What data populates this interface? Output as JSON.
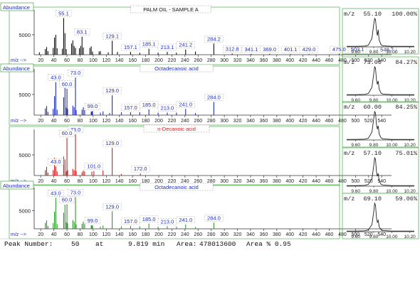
{
  "colors": {
    "frame": "#5cb85c",
    "spectrum1": "#111111",
    "spectrum2": "#1f2dbf",
    "spectrum3": "#cc2222",
    "spectrum4": "#2e9b2e",
    "label": "#1f2dbf",
    "annot3": "#cc2222"
  },
  "chart_data": [
    {
      "type": "bar",
      "panel": "spectrum-1",
      "title": "PALM OIL - SAMPLE A",
      "ylabel": "Abundance",
      "xlabel": "m/z -->",
      "yticks": [
        5000
      ],
      "ylim": [
        0,
        10500
      ],
      "xlim": [
        10,
        555
      ],
      "xticks": [
        20,
        40,
        60,
        80,
        100,
        120,
        140,
        160,
        180,
        200,
        220,
        240,
        260,
        280,
        300,
        320,
        340,
        360,
        380,
        400,
        420,
        440,
        460,
        480,
        500,
        520,
        540
      ],
      "peaks": [
        [
          18,
          600
        ],
        [
          27,
          1400
        ],
        [
          29,
          1900
        ],
        [
          31,
          900
        ],
        [
          39,
          1700
        ],
        [
          41,
          4300
        ],
        [
          43,
          5000
        ],
        [
          45,
          1600
        ],
        [
          53,
          1500
        ],
        [
          55,
          9200
        ],
        [
          57,
          5400
        ],
        [
          59,
          1400
        ],
        [
          67,
          2800
        ],
        [
          69,
          3600
        ],
        [
          71,
          2200
        ],
        [
          73,
          1700
        ],
        [
          79,
          1600
        ],
        [
          81,
          2200
        ],
        [
          83,
          4500
        ],
        [
          85,
          1800
        ],
        [
          95,
          1700
        ],
        [
          97,
          2100
        ],
        [
          99,
          800
        ],
        [
          109,
          800
        ],
        [
          111,
          900
        ],
        [
          123,
          600
        ],
        [
          129,
          3500
        ],
        [
          137,
          700
        ],
        [
          157,
          700
        ],
        [
          171,
          500
        ],
        [
          185,
          1500
        ],
        [
          199,
          500
        ],
        [
          213,
          700
        ],
        [
          227,
          500
        ],
        [
          241,
          1300
        ],
        [
          256,
          800
        ],
        [
          284,
          2800
        ],
        [
          312,
          300
        ],
        [
          341,
          200
        ],
        [
          369,
          200
        ],
        [
          401,
          150
        ],
        [
          429,
          150
        ],
        [
          475,
          150
        ],
        [
          503,
          150
        ],
        [
          548,
          100
        ]
      ],
      "labels": [
        [
          55,
          9200,
          "55.1"
        ],
        [
          83,
          4500,
          "83.1"
        ],
        [
          129,
          3500,
          "129.1"
        ],
        [
          185,
          1500,
          "185.1"
        ],
        [
          157,
          700,
          "157.1"
        ],
        [
          213,
          700,
          "213.1"
        ],
        [
          241,
          1300,
          "241.2"
        ],
        [
          284,
          2800,
          "284.2"
        ],
        [
          312,
          300,
          "312.8"
        ],
        [
          341,
          200,
          "341.1"
        ],
        [
          369,
          200,
          "369.0"
        ],
        [
          401,
          150,
          "401.1"
        ],
        [
          429,
          150,
          "429.0"
        ],
        [
          475,
          150,
          "475.0"
        ],
        [
          503,
          150,
          "503.1"
        ],
        [
          548,
          100,
          "548.7"
        ]
      ]
    },
    {
      "type": "bar",
      "panel": "spectrum-2",
      "title": "Octadecanoic acid",
      "ylabel": "Abundance",
      "xlabel": "m/z -->",
      "yticks": [
        5000
      ],
      "ylim": [
        0,
        10500
      ],
      "xlim": [
        10,
        555
      ],
      "xticks": [
        20,
        40,
        60,
        80,
        100,
        120,
        140,
        160,
        180,
        200,
        220,
        240,
        260,
        280,
        300,
        320,
        340,
        360,
        380,
        400,
        420,
        440,
        460,
        480,
        500,
        520,
        540
      ],
      "peaks": [
        [
          27,
          1600
        ],
        [
          29,
          2200
        ],
        [
          31,
          800
        ],
        [
          39,
          1500
        ],
        [
          41,
          4600
        ],
        [
          43,
          8000
        ],
        [
          45,
          1300
        ],
        [
          55,
          4300
        ],
        [
          57,
          6600
        ],
        [
          59,
          1800
        ],
        [
          60,
          6400
        ],
        [
          61,
          1500
        ],
        [
          69,
          2300
        ],
        [
          71,
          1900
        ],
        [
          73,
          9100
        ],
        [
          74,
          1200
        ],
        [
          83,
          1300
        ],
        [
          85,
          1900
        ],
        [
          87,
          1200
        ],
        [
          97,
          900
        ],
        [
          98,
          800
        ],
        [
          99,
          1000
        ],
        [
          111,
          600
        ],
        [
          115,
          900
        ],
        [
          125,
          500
        ],
        [
          129,
          4800
        ],
        [
          143,
          700
        ],
        [
          157,
          700
        ],
        [
          171,
          700
        ],
        [
          185,
          1400
        ],
        [
          199,
          600
        ],
        [
          213,
          600
        ],
        [
          227,
          600
        ],
        [
          241,
          1500
        ],
        [
          256,
          500
        ],
        [
          284,
          3200
        ]
      ],
      "labels": [
        [
          43,
          8000,
          "43.0"
        ],
        [
          73,
          9100,
          "73.0"
        ],
        [
          60,
          6400,
          "60.0"
        ],
        [
          129,
          4800,
          "129.0"
        ],
        [
          99,
          1000,
          "99.0"
        ],
        [
          157,
          700,
          "157.0"
        ],
        [
          185,
          1400,
          "185.0"
        ],
        [
          213,
          600,
          "213.0"
        ],
        [
          241,
          1500,
          "241.0"
        ],
        [
          284,
          3200,
          "284.0"
        ]
      ]
    },
    {
      "type": "bar",
      "panel": "spectrum-3",
      "title": "n-Decanoic acid",
      "ylabel": "",
      "xlabel": "m/z -->",
      "yticks": [
        5000
      ],
      "ylim": [
        0,
        10500
      ],
      "xlim": [
        10,
        555
      ],
      "xticks": [
        20,
        40,
        60,
        80,
        100,
        120,
        140,
        160,
        180,
        200,
        220,
        240,
        260,
        280,
        300,
        320,
        340,
        360,
        380,
        400,
        420,
        440,
        460,
        480,
        500,
        520,
        540
      ],
      "peaks": [
        [
          27,
          1300
        ],
        [
          29,
          2100
        ],
        [
          31,
          700
        ],
        [
          39,
          1300
        ],
        [
          41,
          4300
        ],
        [
          43,
          2200
        ],
        [
          45,
          1000
        ],
        [
          55,
          4600
        ],
        [
          57,
          3900
        ],
        [
          59,
          1000
        ],
        [
          60,
          9100
        ],
        [
          61,
          1300
        ],
        [
          69,
          1600
        ],
        [
          71,
          1300
        ],
        [
          73,
          10000
        ],
        [
          74,
          1100
        ],
        [
          83,
          800
        ],
        [
          85,
          1200
        ],
        [
          87,
          1000
        ],
        [
          98,
          900
        ],
        [
          101,
          1100
        ],
        [
          115,
          1200
        ],
        [
          129,
          6700
        ],
        [
          143,
          400
        ],
        [
          172,
          500
        ]
      ],
      "labels": [
        [
          73,
          10000,
          "73.0"
        ],
        [
          60,
          9100,
          "60.0"
        ],
        [
          43,
          2200,
          "43.0"
        ],
        [
          129,
          6700,
          "129.0"
        ],
        [
          101,
          1100,
          "101.0"
        ],
        [
          172,
          500,
          "172.0"
        ]
      ]
    },
    {
      "type": "bar",
      "panel": "spectrum-4",
      "title": "Octadecanoic acid",
      "ylabel": "Abundance",
      "xlabel": "m/z -->",
      "yticks": [
        5000
      ],
      "ylim": [
        0,
        10500
      ],
      "xlim": [
        10,
        555
      ],
      "xticks": [
        20,
        40,
        60,
        80,
        100,
        120,
        140,
        160,
        180,
        200,
        220,
        240,
        260,
        280,
        300,
        320,
        340,
        360,
        380,
        400,
        420,
        440,
        460,
        480,
        500,
        520,
        540
      ],
      "peaks": [
        [
          27,
          1600
        ],
        [
          29,
          2300
        ],
        [
          31,
          800
        ],
        [
          39,
          1600
        ],
        [
          41,
          4700
        ],
        [
          43,
          8500
        ],
        [
          45,
          1300
        ],
        [
          55,
          4400
        ],
        [
          57,
          6600
        ],
        [
          59,
          1800
        ],
        [
          60,
          6700
        ],
        [
          61,
          1500
        ],
        [
          69,
          2400
        ],
        [
          71,
          1900
        ],
        [
          73,
          8700
        ],
        [
          74,
          1200
        ],
        [
          83,
          1400
        ],
        [
          85,
          2000
        ],
        [
          87,
          1300
        ],
        [
          97,
          1000
        ],
        [
          98,
          800
        ],
        [
          99,
          1000
        ],
        [
          111,
          600
        ],
        [
          115,
          900
        ],
        [
          129,
          4800
        ],
        [
          143,
          700
        ],
        [
          157,
          800
        ],
        [
          171,
          700
        ],
        [
          185,
          1400
        ],
        [
          199,
          600
        ],
        [
          213,
          700
        ],
        [
          227,
          600
        ],
        [
          241,
          1200
        ],
        [
          256,
          500
        ],
        [
          284,
          1700
        ]
      ],
      "labels": [
        [
          43,
          8500,
          "43.0"
        ],
        [
          73,
          8700,
          "73.0"
        ],
        [
          60,
          6700,
          "60.0"
        ],
        [
          129,
          4800,
          "129.0"
        ],
        [
          99,
          1000,
          "99.0"
        ],
        [
          157,
          800,
          "157.0"
        ],
        [
          185,
          1400,
          "185.0"
        ],
        [
          213,
          700,
          "213.0"
        ],
        [
          241,
          1200,
          "241.0"
        ],
        [
          284,
          1700,
          "284.0"
        ]
      ]
    },
    {
      "type": "line",
      "panel": "ion-1",
      "mz": "55.10",
      "percent": "100.00%",
      "xticks": [
        "9.60",
        "9.80",
        "10.00",
        "10.20"
      ],
      "xlim": [
        9.5,
        10.25
      ],
      "x": [
        9.5,
        9.6,
        9.7,
        9.74,
        9.78,
        9.8,
        9.81,
        9.82,
        9.83,
        9.84,
        9.85,
        9.86,
        9.88,
        9.9,
        9.95,
        10.0,
        10.1,
        10.25
      ],
      "y": [
        2,
        2,
        3,
        6,
        30,
        80,
        100,
        96,
        60,
        40,
        60,
        25,
        8,
        4,
        3,
        2,
        2,
        2
      ]
    },
    {
      "type": "line",
      "panel": "ion-2",
      "mz": "73.00",
      "percent": "84.27%",
      "xticks": [
        "9.60",
        "9.80",
        "10.00",
        "10.20"
      ],
      "xlim": [
        9.5,
        10.25
      ],
      "x": [
        9.5,
        9.6,
        9.7,
        9.74,
        9.78,
        9.8,
        9.81,
        9.82,
        9.83,
        9.84,
        9.85,
        9.86,
        9.88,
        9.9,
        9.95,
        10.0,
        10.1,
        10.25
      ],
      "y": [
        2,
        2,
        3,
        6,
        28,
        75,
        100,
        95,
        55,
        38,
        50,
        22,
        8,
        4,
        3,
        2,
        2,
        2
      ]
    },
    {
      "type": "line",
      "panel": "ion-3",
      "mz": "60.00",
      "percent": "84.25%",
      "xticks": [
        "9.60",
        "9.80",
        "10.00",
        "10.20"
      ],
      "xlim": [
        9.5,
        10.25
      ],
      "x": [
        9.5,
        9.6,
        9.7,
        9.74,
        9.78,
        9.8,
        9.81,
        9.82,
        9.83,
        9.84,
        9.85,
        9.86,
        9.88,
        9.9,
        9.95,
        10.0,
        10.1,
        10.25
      ],
      "y": [
        2,
        2,
        3,
        6,
        28,
        75,
        100,
        95,
        55,
        38,
        50,
        22,
        8,
        4,
        3,
        2,
        2,
        2
      ]
    },
    {
      "type": "line",
      "panel": "ion-4",
      "mz": "57.10",
      "percent": "75.01%",
      "xticks": [
        "9.60",
        "9.80",
        "10.00",
        "10.20"
      ],
      "xlim": [
        9.5,
        10.25
      ],
      "x": [
        9.5,
        9.6,
        9.7,
        9.74,
        9.78,
        9.8,
        9.81,
        9.82,
        9.83,
        9.84,
        9.85,
        9.86,
        9.88,
        9.9,
        9.95,
        10.0,
        10.1,
        10.25
      ],
      "y": [
        2,
        2,
        3,
        6,
        26,
        72,
        100,
        94,
        52,
        35,
        45,
        20,
        7,
        4,
        3,
        2,
        2,
        2
      ]
    },
    {
      "type": "line",
      "panel": "ion-5",
      "mz": "69.10",
      "percent": "59.06%",
      "xticks": [
        "9.60",
        "9.80",
        "10.00",
        "10.20"
      ],
      "xlim": [
        9.5,
        10.25
      ],
      "x": [
        9.5,
        9.6,
        9.7,
        9.74,
        9.78,
        9.8,
        9.81,
        9.82,
        9.83,
        9.84,
        9.85,
        9.86,
        9.88,
        9.9,
        9.95,
        10.0,
        10.1,
        10.25
      ],
      "y": [
        2,
        2,
        3,
        6,
        25,
        70,
        100,
        93,
        50,
        33,
        40,
        18,
        7,
        4,
        3,
        2,
        2,
        2
      ]
    }
  ],
  "ion_label": "m/z",
  "footer": {
    "peak_label": "Peak Number:",
    "peak_number": "50",
    "at_label": "at",
    "time": "9.819 min",
    "area_label": "Area:",
    "area": "478013600",
    "area_pct_label": "Area % 0.95"
  }
}
